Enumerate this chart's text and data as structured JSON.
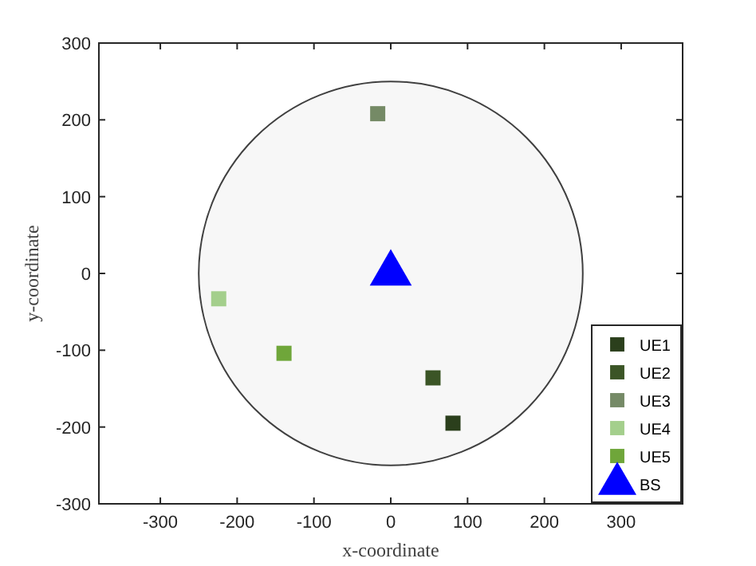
{
  "chart_data": {
    "type": "scatter",
    "xlabel": "x-coordinate",
    "ylabel": "y-coordinate",
    "xlim": [
      -380,
      380
    ],
    "ylim": [
      -300,
      300
    ],
    "xticks": [
      -300,
      -200,
      -100,
      0,
      100,
      200,
      300
    ],
    "yticks": [
      -300,
      -200,
      -100,
      0,
      100,
      200,
      300
    ],
    "grid": false,
    "legend": "bottom right",
    "series": [
      {
        "name": "UE1",
        "color": "#2b3f1c",
        "marker": "square",
        "x": [
          81
        ],
        "values": [
          -195
        ]
      },
      {
        "name": "UE2",
        "color": "#3b5526",
        "marker": "square",
        "x": [
          55
        ],
        "values": [
          -136
        ]
      },
      {
        "name": "UE3",
        "color": "#758a66",
        "marker": "square",
        "x": [
          -17
        ],
        "values": [
          208
        ]
      },
      {
        "name": "UE4",
        "color": "#a4cf8c",
        "marker": "square",
        "x": [
          -224
        ],
        "values": [
          -33
        ]
      },
      {
        "name": "UE5",
        "color": "#6fa63a",
        "marker": "square",
        "x": [
          -139
        ],
        "values": [
          -104
        ]
      },
      {
        "name": "BS",
        "color": "#0000ff",
        "marker": "triangle",
        "x": [
          0
        ],
        "values": [
          0
        ]
      }
    ]
  }
}
